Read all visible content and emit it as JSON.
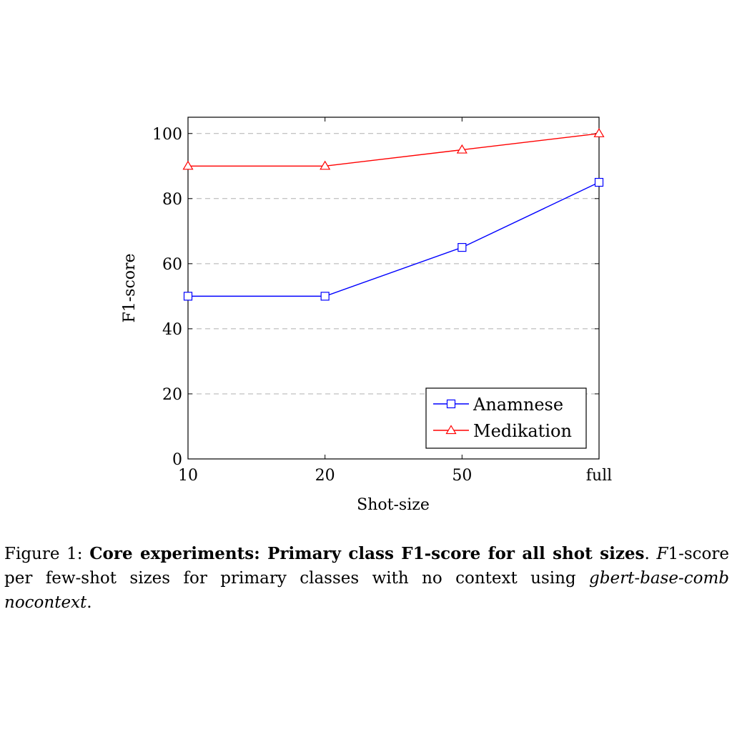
{
  "chart_data": {
    "type": "line",
    "categories": [
      "10",
      "20",
      "50",
      "full"
    ],
    "series": [
      {
        "name": "Anamnese",
        "values": [
          50,
          50,
          65,
          85
        ],
        "color": "#0000ff",
        "marker": "square"
      },
      {
        "name": "Medikation",
        "values": [
          90,
          90,
          95,
          100
        ],
        "color": "#ff0000",
        "marker": "triangle"
      }
    ],
    "xlabel": "Shot-size",
    "ylabel": "F1-score",
    "ylim": [
      0,
      105
    ],
    "yticks": [
      0,
      20,
      40,
      60,
      80,
      100
    ],
    "grid": "horizontal-dashed",
    "legend_position": "bottom-right"
  },
  "caption": {
    "prefix": "Figure 1: ",
    "bold": "Core experiments: Primary class F1-score for all shot sizes",
    "bold_end": ".",
    "italic_f": "F",
    "text": "1-score per few-shot sizes for primary classes with no context using ",
    "model": "gbert-base-comb nocontext",
    "end": "."
  }
}
